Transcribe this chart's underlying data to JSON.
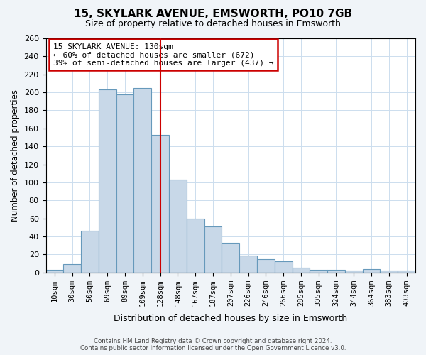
{
  "title": "15, SKYLARK AVENUE, EMSWORTH, PO10 7GB",
  "subtitle": "Size of property relative to detached houses in Emsworth",
  "xlabel": "Distribution of detached houses by size in Emsworth",
  "ylabel": "Number of detached properties",
  "bar_labels": [
    "10sqm",
    "30sqm",
    "50sqm",
    "69sqm",
    "89sqm",
    "109sqm",
    "128sqm",
    "148sqm",
    "167sqm",
    "187sqm",
    "207sqm",
    "226sqm",
    "246sqm",
    "266sqm",
    "285sqm",
    "305sqm",
    "324sqm",
    "344sqm",
    "364sqm",
    "383sqm",
    "403sqm"
  ],
  "bar_values": [
    3,
    9,
    46,
    203,
    198,
    205,
    153,
    103,
    60,
    51,
    33,
    19,
    15,
    12,
    5,
    3,
    3,
    2,
    4,
    2,
    2
  ],
  "bar_color": "#c8d8e8",
  "bar_edge_color": "#6699bb",
  "vline_x": 6,
  "vline_color": "#cc0000",
  "annotation_title": "15 SKYLARK AVENUE: 130sqm",
  "annotation_line1": "← 60% of detached houses are smaller (672)",
  "annotation_line2": "39% of semi-detached houses are larger (437) →",
  "annotation_box_color": "#cc0000",
  "ylim": [
    0,
    260
  ],
  "yticks": [
    0,
    20,
    40,
    60,
    80,
    100,
    120,
    140,
    160,
    180,
    200,
    220,
    240,
    260
  ],
  "footer1": "Contains HM Land Registry data © Crown copyright and database right 2024.",
  "footer2": "Contains public sector information licensed under the Open Government Licence v3.0.",
  "bg_color": "#f0f4f8",
  "plot_bg_color": "#ffffff"
}
